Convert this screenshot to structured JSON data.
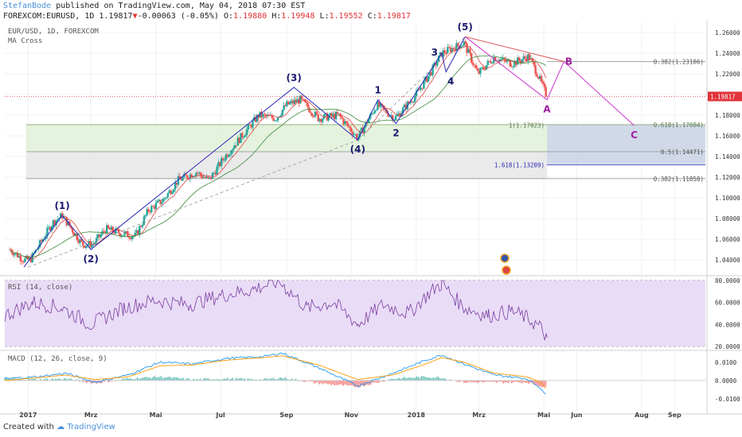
{
  "header": {
    "author": "StefanBode",
    "published": " published on TradingView.com, May 04, 2018 07:30 EST",
    "symbol": "FOREXCOM:EURUSD, 1D 1.19817",
    "arrow": "▼",
    "change": "-0.00063 (-0.05%)",
    "o_label": "O:",
    "o_val": "1.19880",
    "h_label": "H:",
    "h_val": "1.19948",
    "l_label": "L:",
    "l_val": "1.19552",
    "c_label": "C:",
    "c_val": "1.19817"
  },
  "legend": {
    "line1": "EUR/USD, 1D, FOREXCOM",
    "line2": "MA Cross"
  },
  "rsi_legend": "RSI (14, close)",
  "macd_legend": "MACD (12, 26, close, 9)",
  "footer": {
    "created": "Created with",
    "brand": "TradingView"
  },
  "colors": {
    "up": "#26a69a",
    "down": "#ef5350",
    "wave": "#2a2ab8",
    "abc": "#cc33cc",
    "rsi": "#7b3fa0",
    "rsi_band": "#e9dcf7",
    "macd": "#2196f3",
    "signal": "#ff9800",
    "green_zone": "#dcefd3",
    "gray_zone": "#e6e6e6",
    "blue_zone": "#c5d0e3",
    "price_tag": "#e0343a"
  },
  "chart_data": [
    {
      "type": "candlestick",
      "symbol": "EUR/USD",
      "ylim": [
        1.027,
        1.27
      ],
      "y_ticks": [
        "1.26000",
        "1.24000",
        "1.22000",
        "1.20000",
        "1.18000",
        "1.16000",
        "1.14000",
        "1.12000",
        "1.10000",
        "1.08000",
        "1.06000",
        "1.04000"
      ],
      "x_ticks": [
        "2017",
        "Mrz",
        "Mai",
        "Jul",
        "Sep",
        "Nov",
        "2018",
        "Mrz",
        "Mai",
        "Jun",
        "Aug",
        "Sep"
      ],
      "last_price": "1.19817",
      "price_path": [
        [
          "2016-12-15",
          1.05
        ],
        [
          "2016-12-28",
          1.04
        ],
        [
          "2017-01-03",
          1.04
        ],
        [
          "2017-01-24",
          1.076
        ],
        [
          "2017-02-02",
          1.083
        ],
        [
          "2017-02-21",
          1.055
        ],
        [
          "2017-03-03",
          1.055
        ],
        [
          "2017-03-15",
          1.07
        ],
        [
          "2017-04-01",
          1.065
        ],
        [
          "2017-04-12",
          1.063
        ],
        [
          "2017-04-24",
          1.088
        ],
        [
          "2017-05-08",
          1.098
        ],
        [
          "2017-05-22",
          1.117
        ],
        [
          "2017-06-08",
          1.125
        ],
        [
          "2017-06-20",
          1.117
        ],
        [
          "2017-07-05",
          1.14
        ],
        [
          "2017-07-25",
          1.165
        ],
        [
          "2017-08-06",
          1.18
        ],
        [
          "2017-08-22",
          1.177
        ],
        [
          "2017-09-01",
          1.19
        ],
        [
          "2017-09-14",
          1.195
        ],
        [
          "2017-10-01",
          1.177
        ],
        [
          "2017-10-20",
          1.18
        ],
        [
          "2017-11-07",
          1.158
        ],
        [
          "2017-11-25",
          1.19
        ],
        [
          "2017-12-12",
          1.177
        ],
        [
          "2018-01-01",
          1.2
        ],
        [
          "2018-01-15",
          1.222
        ],
        [
          "2018-01-25",
          1.24
        ],
        [
          "2018-02-15",
          1.25
        ],
        [
          "2018-02-28",
          1.22
        ],
        [
          "2018-03-15",
          1.236
        ],
        [
          "2018-04-01",
          1.23
        ],
        [
          "2018-04-17",
          1.237
        ],
        [
          "2018-04-25",
          1.22
        ],
        [
          "2018-05-04",
          1.198
        ]
      ],
      "waves": [
        {
          "label": "(1)",
          "date": "2017-02-02",
          "price": 1.083,
          "pos": "above"
        },
        {
          "label": "(2)",
          "date": "2017-03-01",
          "price": 1.05,
          "pos": "below"
        },
        {
          "label": "(3)",
          "date": "2017-09-08",
          "price": 1.207,
          "pos": "above"
        },
        {
          "label": "(4)",
          "date": "2017-11-07",
          "price": 1.156,
          "pos": "below"
        },
        {
          "label": "1",
          "date": "2017-11-26",
          "price": 1.195,
          "pos": "above"
        },
        {
          "label": "2",
          "date": "2017-12-13",
          "price": 1.172,
          "pos": "below"
        },
        {
          "label": "3",
          "date": "2018-01-25",
          "price": 1.24,
          "pos": "left"
        },
        {
          "label": "4",
          "date": "2018-01-29",
          "price": 1.222,
          "pos": "right"
        },
        {
          "label": "(5)",
          "date": "2018-02-16",
          "price": 1.256,
          "pos": "above"
        }
      ],
      "abc": [
        {
          "label": "A",
          "date": "2018-05-04",
          "price": 1.195,
          "pos": "below"
        },
        {
          "label": "B",
          "date": "2018-05-20",
          "price": 1.232,
          "pos": "right"
        },
        {
          "label": "C",
          "date": "2018-07-25",
          "price": 1.17,
          "pos": "below"
        }
      ],
      "fib_levels": [
        {
          "label": "0.382(1.23186)",
          "price": 1.23186
        },
        {
          "label": "1(1.17023)",
          "price": 1.17023
        },
        {
          "label": "0.618(1.17084)",
          "price": 1.17084
        },
        {
          "label": "0.5(1.14471)",
          "price": 1.14471
        },
        {
          "label": "1.618(1.13209)",
          "price": 1.13209
        },
        {
          "label": "0.382(1.11858)",
          "price": 1.11858
        }
      ]
    },
    {
      "type": "line",
      "name": "RSI (14, close)",
      "ylim": [
        18,
        82
      ],
      "y_ticks": [
        "80.0000",
        "60.0000",
        "40.0000",
        "20.0000"
      ],
      "bands": [
        70,
        30
      ],
      "x": [
        "2016-12-10",
        "2017-01-05",
        "2017-02-02",
        "2017-03-01",
        "2017-04-01",
        "2017-05-01",
        "2017-06-01",
        "2017-07-01",
        "2017-08-01",
        "2017-08-25",
        "2017-09-20",
        "2017-10-15",
        "2017-11-07",
        "2017-12-01",
        "2017-12-25",
        "2018-01-15",
        "2018-01-25",
        "2018-02-15",
        "2018-03-10",
        "2018-04-01",
        "2018-04-15",
        "2018-04-27",
        "2018-05-04"
      ],
      "values": [
        48,
        60,
        55,
        40,
        55,
        62,
        58,
        66,
        72,
        79,
        55,
        60,
        40,
        58,
        50,
        70,
        77,
        55,
        48,
        52,
        46,
        38,
        28
      ]
    },
    {
      "type": "line",
      "name": "MACD (12, 26, close, 9)",
      "ylim": [
        -0.017,
        0.016
      ],
      "y_ticks": [
        "0.0100",
        "0.0000",
        "-0.0100"
      ],
      "x": [
        "2016-12-10",
        "2017-01-10",
        "2017-02-05",
        "2017-03-05",
        "2017-04-05",
        "2017-05-05",
        "2017-06-05",
        "2017-07-05",
        "2017-08-10",
        "2017-08-28",
        "2017-10-01",
        "2017-11-07",
        "2017-12-10",
        "2018-01-10",
        "2018-01-25",
        "2018-02-15",
        "2018-03-15",
        "2018-04-15",
        "2018-04-28",
        "2018-05-04"
      ],
      "macd": [
        0.001,
        0.002,
        0.004,
        -0.001,
        0.003,
        0.01,
        0.009,
        0.012,
        0.013,
        0.015,
        0.007,
        -0.003,
        0.004,
        0.011,
        0.014,
        0.009,
        0.003,
        0.001,
        -0.004,
        -0.009
      ],
      "signal": [
        0.0,
        0.0015,
        0.003,
        0.0005,
        0.002,
        0.008,
        0.0085,
        0.011,
        0.0125,
        0.0135,
        0.0085,
        0.0005,
        0.003,
        0.009,
        0.0125,
        0.01,
        0.004,
        0.002,
        -0.001,
        -0.005
      ]
    }
  ]
}
